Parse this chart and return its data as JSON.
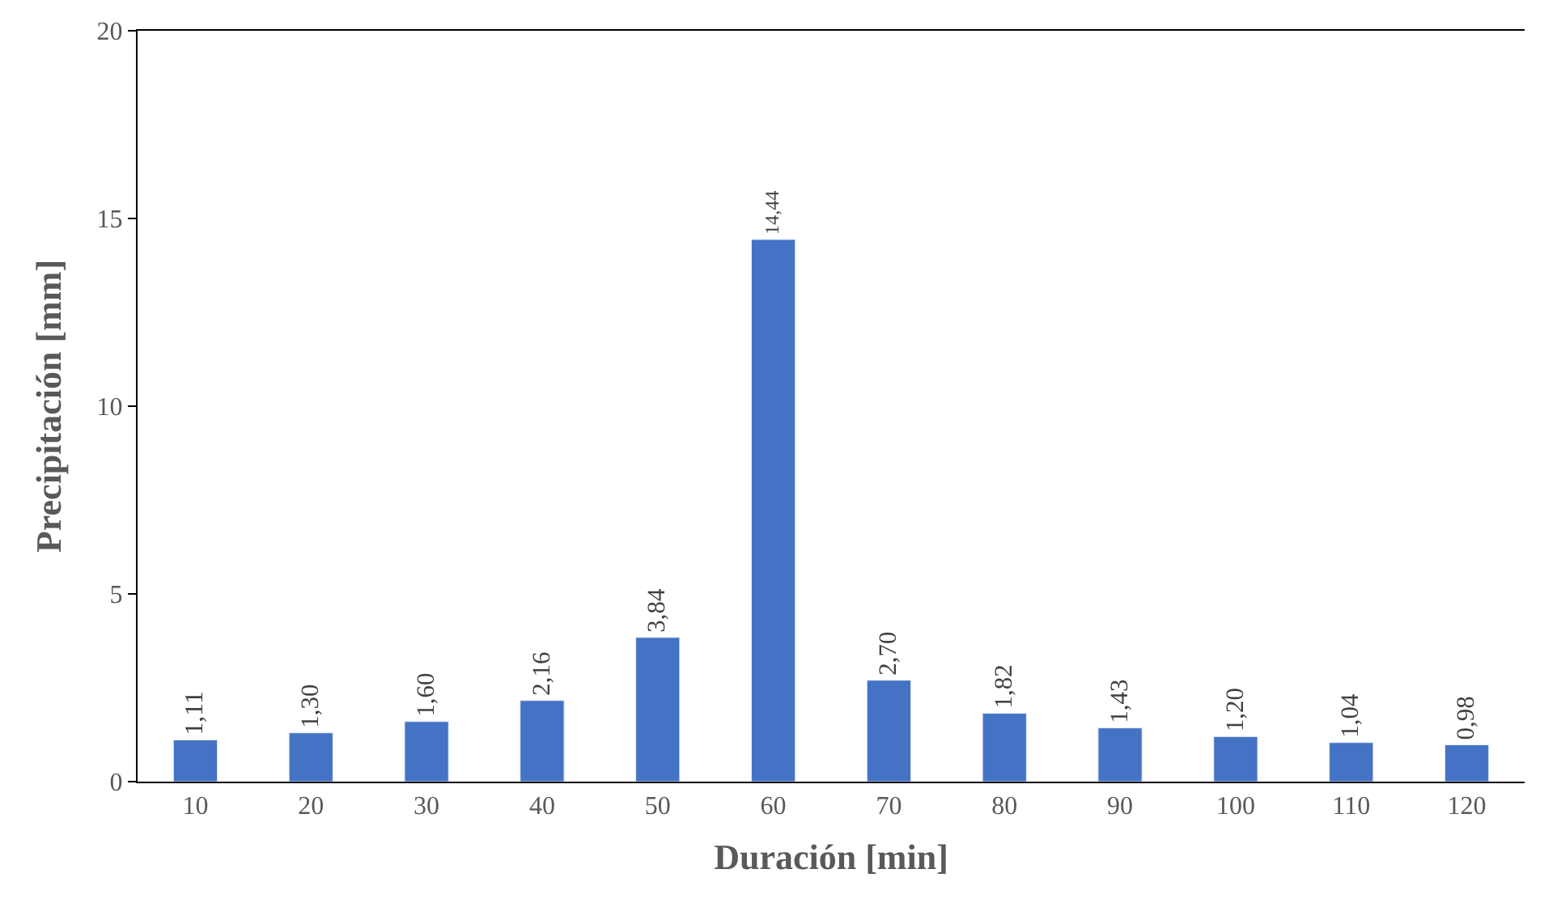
{
  "chart_data": {
    "type": "bar",
    "xlabel": "Duración [min]",
    "ylabel": "Precipitación [mm]",
    "categories": [
      "10",
      "20",
      "30",
      "40",
      "50",
      "60",
      "70",
      "80",
      "90",
      "100",
      "110",
      "120"
    ],
    "values": [
      1.11,
      1.3,
      1.6,
      2.16,
      3.84,
      14.44,
      2.7,
      1.82,
      1.43,
      1.2,
      1.04,
      0.98
    ],
    "value_labels": [
      "1,11",
      "1,30",
      "1,60",
      "2,16",
      "3,84",
      "14,44",
      "2,70",
      "1,82",
      "1,43",
      "1,20",
      "1,04",
      "0,98"
    ],
    "color": "#4472c4",
    "ylim": [
      0,
      20
    ],
    "yticks": [
      0,
      5,
      10,
      15,
      20
    ]
  }
}
